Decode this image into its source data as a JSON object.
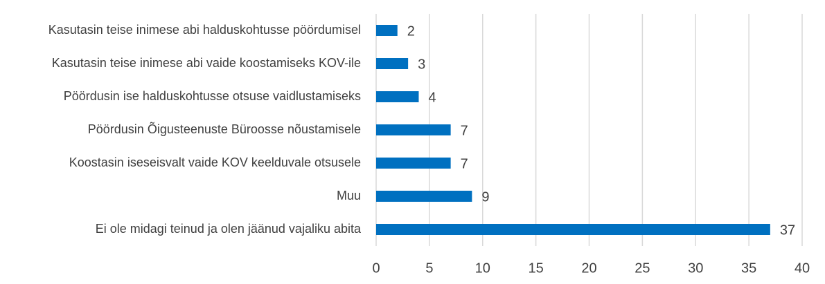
{
  "chart_data": {
    "type": "bar",
    "orientation": "horizontal",
    "categories": [
      "Kasutasin teise inimese abi halduskohtusse pöördumisel",
      "Kasutasin teise inimese abi vaide koostamiseks KOV-ile",
      "Pöördusin ise halduskohtusse otsuse vaidlustamiseks",
      "Pöördusin Õigusteenuste Büroosse nõustamisele",
      "Koostasin iseseisvalt vaide KOV keelduvale otsusele",
      "Muu",
      "Ei ole midagi teinud ja olen jäänud vajaliku abita"
    ],
    "values": [
      2,
      3,
      4,
      7,
      7,
      9,
      37
    ],
    "color": "#0070c0",
    "xlim": [
      0,
      40
    ],
    "xticks": [
      0,
      5,
      10,
      15,
      20,
      25,
      30,
      35,
      40
    ],
    "grid": true
  }
}
